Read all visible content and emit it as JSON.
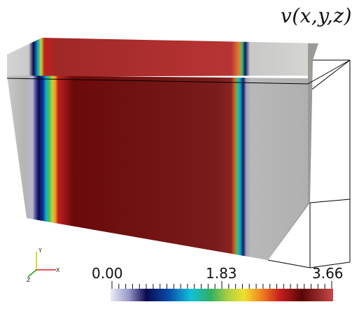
{
  "title": "v(x,y,z)",
  "colorbar": {
    "tick_labels": [
      "0.00",
      "1.83",
      "3.66"
    ],
    "range": [
      0,
      3.66
    ],
    "colors": [
      "#e6e6ee",
      "#6a6aa8",
      "#0a0a50",
      "#0a3a9a",
      "#10b0c8",
      "#40c070",
      "#b0d040",
      "#f0e030",
      "#f08020",
      "#c02020",
      "#6a0808",
      "#9a2020",
      "#c04040"
    ]
  },
  "axes_triad": {
    "labels": [
      "Y",
      "X",
      "Z"
    ],
    "colors": {
      "x": "#e02020",
      "y": "#d0d000",
      "z": "#20a020"
    }
  },
  "surface_colors": {
    "side_gray": "#b4b4b4",
    "dark_red": "#781e1e",
    "red_top": "#b43030"
  }
}
